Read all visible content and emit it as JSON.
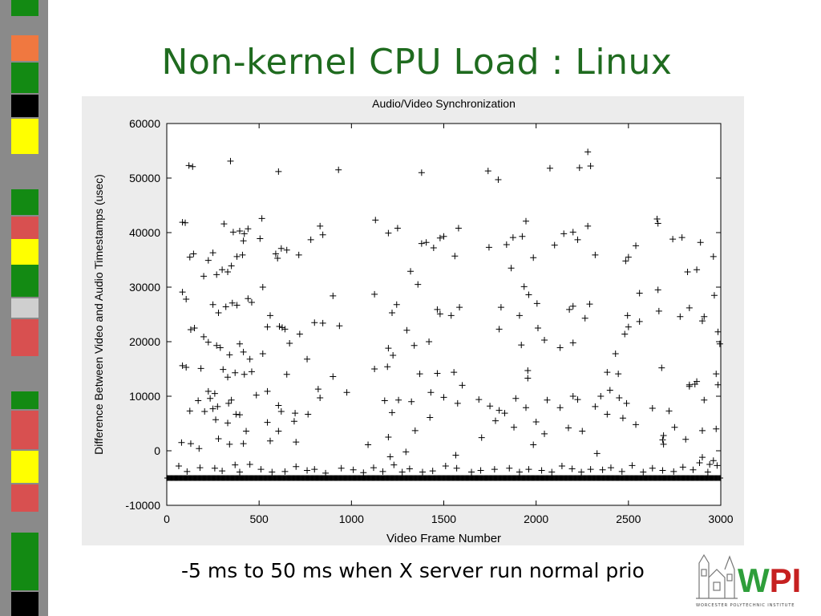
{
  "slide": {
    "title": "Non-kernel CPU Load : Linux",
    "caption": "-5 ms to 50 ms when X server run normal prio",
    "logo_text": "WPI",
    "logo_subtext": "WORCESTER POLYTECHNIC INSTITUTE",
    "colors": {
      "title": "#1f6b1f",
      "logo_green": "#2e9e3a",
      "logo_red": "#c62020"
    }
  },
  "chart_data": {
    "type": "scatter",
    "title": "Audio/Video Synchronization",
    "xlabel": "Video Frame Number",
    "ylabel": "Difference Between Video and Audio Timestamps (usec)",
    "xlim": [
      0,
      3000
    ],
    "ylim": [
      -10000,
      60000
    ],
    "xticks": [
      0,
      500,
      1000,
      1500,
      2000,
      2500,
      3000
    ],
    "yticks": [
      -10000,
      0,
      10000,
      20000,
      30000,
      40000,
      50000,
      60000
    ],
    "marker": "+",
    "grid": false,
    "baseline_value": -5000,
    "points": [
      [
        120,
        52300
      ],
      [
        140,
        52100
      ],
      [
        345,
        53100
      ],
      [
        605,
        51200
      ],
      [
        930,
        51500
      ],
      [
        1380,
        51000
      ],
      [
        1740,
        51300
      ],
      [
        1795,
        49700
      ],
      [
        2075,
        51800
      ],
      [
        2235,
        51900
      ],
      [
        2280,
        54800
      ],
      [
        2295,
        52200
      ],
      [
        85,
        41900
      ],
      [
        100,
        41800
      ],
      [
        310,
        41600
      ],
      [
        515,
        42600
      ],
      [
        830,
        41200
      ],
      [
        1130,
        42300
      ],
      [
        1580,
        40800
      ],
      [
        1945,
        42100
      ],
      [
        2280,
        41200
      ],
      [
        2655,
        42500
      ],
      [
        2660,
        41700
      ],
      [
        360,
        40100
      ],
      [
        395,
        40300
      ],
      [
        415,
        38500
      ],
      [
        420,
        39800
      ],
      [
        440,
        40700
      ],
      [
        505,
        38900
      ],
      [
        620,
        37100
      ],
      [
        650,
        36800
      ],
      [
        780,
        38700
      ],
      [
        845,
        39600
      ],
      [
        1200,
        39900
      ],
      [
        1250,
        40800
      ],
      [
        1380,
        38000
      ],
      [
        1405,
        38200
      ],
      [
        1480,
        39000
      ],
      [
        1500,
        39300
      ],
      [
        1840,
        37800
      ],
      [
        1875,
        39100
      ],
      [
        1925,
        39300
      ],
      [
        2100,
        37700
      ],
      [
        2150,
        39800
      ],
      [
        2200,
        40100
      ],
      [
        2225,
        38700
      ],
      [
        2540,
        37600
      ],
      [
        2740,
        38800
      ],
      [
        2790,
        39100
      ],
      [
        2890,
        38200
      ],
      [
        2960,
        35600
      ],
      [
        125,
        35500
      ],
      [
        145,
        36100
      ],
      [
        200,
        32000
      ],
      [
        225,
        34900
      ],
      [
        250,
        36300
      ],
      [
        270,
        32300
      ],
      [
        300,
        33200
      ],
      [
        330,
        32800
      ],
      [
        350,
        33900
      ],
      [
        380,
        35600
      ],
      [
        410,
        35900
      ],
      [
        590,
        36100
      ],
      [
        600,
        35300
      ],
      [
        715,
        35900
      ],
      [
        1320,
        32900
      ],
      [
        1445,
        37200
      ],
      [
        1560,
        35700
      ],
      [
        1745,
        37300
      ],
      [
        1865,
        33500
      ],
      [
        1985,
        35400
      ],
      [
        2320,
        35900
      ],
      [
        2485,
        34800
      ],
      [
        2500,
        35500
      ],
      [
        2820,
        32800
      ],
      [
        2870,
        33200
      ],
      [
        85,
        29100
      ],
      [
        105,
        27800
      ],
      [
        250,
        26800
      ],
      [
        280,
        25300
      ],
      [
        320,
        26400
      ],
      [
        355,
        27100
      ],
      [
        380,
        26700
      ],
      [
        440,
        27900
      ],
      [
        460,
        27200
      ],
      [
        520,
        30000
      ],
      [
        560,
        24800
      ],
      [
        900,
        28400
      ],
      [
        1125,
        28700
      ],
      [
        1220,
        25300
      ],
      [
        1245,
        26800
      ],
      [
        1360,
        30500
      ],
      [
        1465,
        25900
      ],
      [
        1480,
        25100
      ],
      [
        1585,
        26300
      ],
      [
        1810,
        26300
      ],
      [
        1910,
        24800
      ],
      [
        1935,
        30100
      ],
      [
        1960,
        28600
      ],
      [
        2005,
        27000
      ],
      [
        2180,
        25900
      ],
      [
        2200,
        26500
      ],
      [
        2265,
        24300
      ],
      [
        2290,
        26900
      ],
      [
        2495,
        24800
      ],
      [
        2560,
        28900
      ],
      [
        2660,
        29500
      ],
      [
        2665,
        25600
      ],
      [
        2780,
        24600
      ],
      [
        2830,
        26200
      ],
      [
        2910,
        24600
      ],
      [
        2965,
        28500
      ],
      [
        130,
        22200
      ],
      [
        150,
        22500
      ],
      [
        200,
        20900
      ],
      [
        225,
        19900
      ],
      [
        270,
        19300
      ],
      [
        290,
        18900
      ],
      [
        340,
        17600
      ],
      [
        395,
        19600
      ],
      [
        415,
        18100
      ],
      [
        450,
        16800
      ],
      [
        520,
        17800
      ],
      [
        545,
        22700
      ],
      [
        610,
        22800
      ],
      [
        625,
        22600
      ],
      [
        640,
        22300
      ],
      [
        665,
        19700
      ],
      [
        720,
        21400
      ],
      [
        760,
        16800
      ],
      [
        800,
        23500
      ],
      [
        845,
        23400
      ],
      [
        935,
        22900
      ],
      [
        1200,
        18800
      ],
      [
        1225,
        17500
      ],
      [
        1300,
        22100
      ],
      [
        1340,
        19300
      ],
      [
        1420,
        20000
      ],
      [
        1540,
        24800
      ],
      [
        1800,
        22300
      ],
      [
        1920,
        19400
      ],
      [
        2010,
        22500
      ],
      [
        2045,
        20300
      ],
      [
        2130,
        18900
      ],
      [
        2200,
        19800
      ],
      [
        2430,
        17800
      ],
      [
        2480,
        21400
      ],
      [
        2500,
        22700
      ],
      [
        2560,
        23700
      ],
      [
        2900,
        23800
      ],
      [
        2985,
        21800
      ],
      [
        2995,
        19600
      ],
      [
        85,
        15600
      ],
      [
        105,
        15300
      ],
      [
        185,
        15100
      ],
      [
        305,
        14900
      ],
      [
        330,
        13500
      ],
      [
        370,
        14300
      ],
      [
        420,
        14000
      ],
      [
        460,
        14500
      ],
      [
        650,
        14000
      ],
      [
        900,
        13600
      ],
      [
        1125,
        15000
      ],
      [
        1195,
        15400
      ],
      [
        1370,
        14100
      ],
      [
        1465,
        14200
      ],
      [
        1555,
        14400
      ],
      [
        1955,
        14700
      ],
      [
        1955,
        13300
      ],
      [
        2385,
        14400
      ],
      [
        2445,
        14100
      ],
      [
        2680,
        15200
      ],
      [
        2830,
        12100
      ],
      [
        2870,
        12700
      ],
      [
        2975,
        14100
      ],
      [
        170,
        9200
      ],
      [
        225,
        10900
      ],
      [
        235,
        9600
      ],
      [
        260,
        10500
      ],
      [
        275,
        8100
      ],
      [
        335,
        8700
      ],
      [
        350,
        9300
      ],
      [
        395,
        6600
      ],
      [
        485,
        10200
      ],
      [
        545,
        10900
      ],
      [
        605,
        8300
      ],
      [
        620,
        7200
      ],
      [
        695,
        6900
      ],
      [
        765,
        6700
      ],
      [
        820,
        11300
      ],
      [
        830,
        9700
      ],
      [
        975,
        10700
      ],
      [
        1180,
        9200
      ],
      [
        1220,
        7000
      ],
      [
        1255,
        9300
      ],
      [
        1325,
        9000
      ],
      [
        1430,
        10700
      ],
      [
        1500,
        9800
      ],
      [
        1575,
        8700
      ],
      [
        1600,
        12000
      ],
      [
        1690,
        9400
      ],
      [
        1750,
        8200
      ],
      [
        1800,
        7400
      ],
      [
        1830,
        6900
      ],
      [
        1890,
        9600
      ],
      [
        1945,
        7900
      ],
      [
        2000,
        5300
      ],
      [
        2060,
        9300
      ],
      [
        2130,
        7900
      ],
      [
        2200,
        10000
      ],
      [
        2225,
        9400
      ],
      [
        2320,
        8100
      ],
      [
        2350,
        10000
      ],
      [
        2400,
        11100
      ],
      [
        2450,
        9700
      ],
      [
        2490,
        8700
      ],
      [
        2630,
        7800
      ],
      [
        2720,
        7300
      ],
      [
        2830,
        11800
      ],
      [
        2860,
        12200
      ],
      [
        2910,
        9300
      ],
      [
        2985,
        12100
      ],
      [
        125,
        7300
      ],
      [
        205,
        7200
      ],
      [
        250,
        7700
      ],
      [
        265,
        5700
      ],
      [
        330,
        5100
      ],
      [
        375,
        6700
      ],
      [
        430,
        3600
      ],
      [
        545,
        5200
      ],
      [
        605,
        3600
      ],
      [
        690,
        5400
      ],
      [
        1090,
        1100
      ],
      [
        1200,
        2500
      ],
      [
        1345,
        3700
      ],
      [
        1425,
        6100
      ],
      [
        1705,
        2400
      ],
      [
        1780,
        5500
      ],
      [
        1880,
        4300
      ],
      [
        1985,
        1100
      ],
      [
        2045,
        3100
      ],
      [
        2175,
        4200
      ],
      [
        2250,
        3600
      ],
      [
        2385,
        6700
      ],
      [
        2470,
        6000
      ],
      [
        2540,
        4800
      ],
      [
        2690,
        1200
      ],
      [
        2750,
        4300
      ],
      [
        2810,
        2100
      ],
      [
        2900,
        3700
      ],
      [
        2975,
        4000
      ],
      [
        80,
        1500
      ],
      [
        130,
        1300
      ],
      [
        175,
        400
      ],
      [
        280,
        2200
      ],
      [
        340,
        1200
      ],
      [
        415,
        1300
      ],
      [
        560,
        1800
      ],
      [
        700,
        1600
      ],
      [
        1210,
        -1100
      ],
      [
        1295,
        -200
      ],
      [
        1565,
        -800
      ],
      [
        2330,
        -500
      ],
      [
        2360,
        -3500
      ],
      [
        2685,
        2000
      ],
      [
        2690,
        2800
      ],
      [
        2900,
        -1200
      ],
      [
        2940,
        -2500
      ],
      [
        2960,
        -1800
      ],
      [
        2980,
        -2700
      ],
      [
        65,
        -2800
      ],
      [
        110,
        -3800
      ],
      [
        180,
        -3100
      ],
      [
        260,
        -3200
      ],
      [
        300,
        -3700
      ],
      [
        370,
        -2600
      ],
      [
        395,
        -3900
      ],
      [
        450,
        -2500
      ],
      [
        510,
        -3400
      ],
      [
        570,
        -3900
      ],
      [
        640,
        -3800
      ],
      [
        700,
        -2900
      ],
      [
        760,
        -3600
      ],
      [
        800,
        -3400
      ],
      [
        860,
        -4100
      ],
      [
        945,
        -3200
      ],
      [
        1010,
        -3500
      ],
      [
        1065,
        -4000
      ],
      [
        1120,
        -3100
      ],
      [
        1170,
        -3800
      ],
      [
        1230,
        -2600
      ],
      [
        1275,
        -3900
      ],
      [
        1315,
        -3300
      ],
      [
        1385,
        -3900
      ],
      [
        1440,
        -3700
      ],
      [
        1510,
        -2800
      ],
      [
        1570,
        -3200
      ],
      [
        1650,
        -3900
      ],
      [
        1700,
        -3600
      ],
      [
        1775,
        -3400
      ],
      [
        1855,
        -3200
      ],
      [
        1910,
        -3900
      ],
      [
        1960,
        -3400
      ],
      [
        2030,
        -3600
      ],
      [
        2085,
        -3900
      ],
      [
        2140,
        -2800
      ],
      [
        2195,
        -3300
      ],
      [
        2245,
        -3900
      ],
      [
        2295,
        -3400
      ],
      [
        2405,
        -3100
      ],
      [
        2465,
        -3800
      ],
      [
        2520,
        -2700
      ],
      [
        2580,
        -3900
      ],
      [
        2630,
        -3200
      ],
      [
        2685,
        -3600
      ],
      [
        2745,
        -3800
      ],
      [
        2795,
        -3000
      ],
      [
        2850,
        -3500
      ],
      [
        2885,
        -2200
      ],
      [
        2930,
        -3900
      ]
    ]
  }
}
